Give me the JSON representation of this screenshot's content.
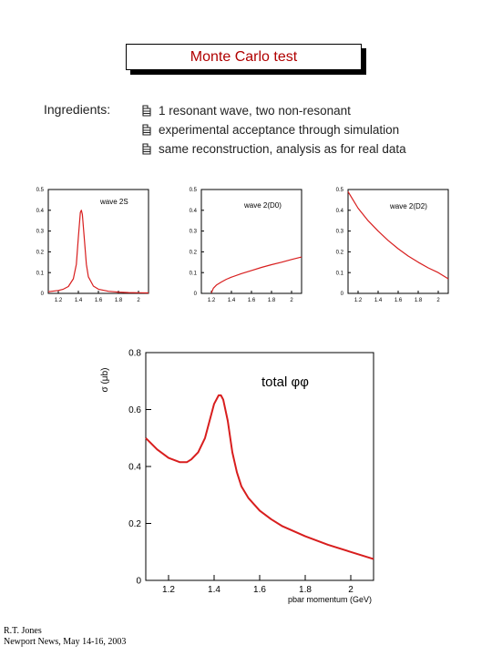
{
  "slide": {
    "title": "Monte Carlo test",
    "ingredients_label": "Ingredients:",
    "bullets": [
      "1 resonant wave, two non-resonant",
      "experimental acceptance through simulation",
      "same reconstruction, analysis as for real data"
    ],
    "bullet_icon": "pointing-hand-icon",
    "footer_line1": "R.T. Jones",
    "footer_line2": "Newport News, May 14-16, 2003"
  },
  "colors": {
    "curve": "#d81e1e",
    "title_text": "#b00000",
    "axis": "#000000"
  },
  "chart_data": [
    {
      "type": "line",
      "title": "wave 2S",
      "xlim": [
        1.1,
        2.1
      ],
      "ylim": [
        0,
        0.5
      ],
      "x_ticks": [
        "1.2",
        "1.4",
        "1.6",
        "1.8",
        "2"
      ],
      "y_ticks": [
        "0",
        "0.1",
        "0.2",
        "0.3",
        "0.4",
        "0.5"
      ],
      "series": [
        {
          "x": [
            1.1,
            1.2,
            1.25,
            1.3,
            1.35,
            1.38,
            1.4,
            1.42,
            1.43,
            1.44,
            1.46,
            1.48,
            1.5,
            1.55,
            1.6,
            1.7,
            1.8,
            1.9,
            2.0,
            2.1
          ],
          "y": [
            0.008,
            0.014,
            0.02,
            0.033,
            0.07,
            0.14,
            0.27,
            0.39,
            0.4,
            0.38,
            0.26,
            0.14,
            0.08,
            0.035,
            0.02,
            0.01,
            0.006,
            0.004,
            0.003,
            0.002
          ]
        }
      ]
    },
    {
      "type": "line",
      "title": "wave 2(D0)",
      "xlim": [
        1.1,
        2.1
      ],
      "ylim": [
        0,
        0.5
      ],
      "x_ticks": [
        "1.2",
        "1.4",
        "1.6",
        "1.8",
        "2"
      ],
      "y_ticks": [
        "0",
        "0.1",
        "0.2",
        "0.3",
        "0.4",
        "0.5"
      ],
      "series": [
        {
          "x": [
            1.2,
            1.22,
            1.25,
            1.3,
            1.35,
            1.4,
            1.5,
            1.6,
            1.7,
            1.8,
            1.9,
            2.0,
            2.1
          ],
          "y": [
            0.002,
            0.025,
            0.04,
            0.055,
            0.068,
            0.078,
            0.095,
            0.11,
            0.125,
            0.138,
            0.15,
            0.163,
            0.175
          ]
        }
      ]
    },
    {
      "type": "line",
      "title": "wave 2(D2)",
      "xlim": [
        1.1,
        2.1
      ],
      "ylim": [
        0,
        0.5
      ],
      "x_ticks": [
        "1.2",
        "1.4",
        "1.6",
        "1.8",
        "2"
      ],
      "y_ticks": [
        "0",
        "0.1",
        "0.2",
        "0.3",
        "0.4",
        "0.5"
      ],
      "series": [
        {
          "x": [
            1.1,
            1.15,
            1.2,
            1.3,
            1.4,
            1.5,
            1.6,
            1.7,
            1.8,
            1.9,
            2.0,
            2.1
          ],
          "y": [
            0.49,
            0.45,
            0.41,
            0.35,
            0.3,
            0.255,
            0.215,
            0.18,
            0.15,
            0.123,
            0.1,
            0.07
          ]
        }
      ]
    },
    {
      "type": "line",
      "title": "total φφ",
      "xlabel": "pbar momentum (GeV)",
      "ylabel": "σ (μb)",
      "xlim": [
        1.1,
        2.1
      ],
      "ylim": [
        0,
        0.8
      ],
      "x_ticks": [
        "1.2",
        "1.4",
        "1.6",
        "1.8",
        "2"
      ],
      "y_ticks": [
        "0",
        "0.2",
        "0.4",
        "0.6",
        "0.8"
      ],
      "series": [
        {
          "x": [
            1.1,
            1.15,
            1.2,
            1.25,
            1.28,
            1.3,
            1.33,
            1.36,
            1.38,
            1.4,
            1.42,
            1.43,
            1.44,
            1.46,
            1.48,
            1.5,
            1.52,
            1.55,
            1.6,
            1.65,
            1.7,
            1.8,
            1.9,
            2.0,
            2.1
          ],
          "y": [
            0.5,
            0.46,
            0.43,
            0.415,
            0.415,
            0.425,
            0.45,
            0.5,
            0.56,
            0.62,
            0.65,
            0.65,
            0.635,
            0.56,
            0.45,
            0.38,
            0.33,
            0.29,
            0.245,
            0.215,
            0.19,
            0.155,
            0.125,
            0.1,
            0.075
          ]
        }
      ]
    }
  ]
}
